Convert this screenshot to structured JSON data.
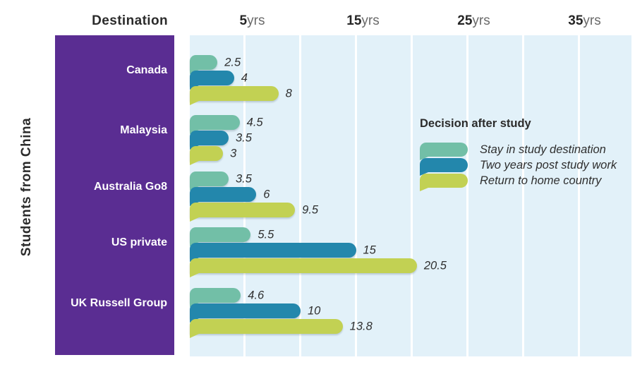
{
  "y_axis_label": "Students from China",
  "header": {
    "destination": "Destination"
  },
  "axis_ticks": [
    {
      "value": 5,
      "suffix": "yrs"
    },
    {
      "value": 15,
      "suffix": "yrs"
    },
    {
      "value": 25,
      "suffix": "yrs"
    },
    {
      "value": 35,
      "suffix": "yrs"
    }
  ],
  "legend": {
    "title": "Decision after study"
  },
  "colors": {
    "panel_purple": "#5a2d92",
    "plot_background": "#e2f1f9",
    "gridline_white": "#ffffff",
    "series_stay": "#72bfa7",
    "series_work": "#2387ac",
    "series_return": "#c2d153",
    "text_dark": "#2b2b2b",
    "tick_suffix_gray": "#6a6a6a"
  },
  "chart_data": {
    "type": "bar",
    "orientation": "horizontal",
    "row_header": "Destination",
    "ylabel": "Students from China",
    "legend_title": "Decision after study",
    "categories": [
      "Canada",
      "Malaysia",
      "Australia Go8",
      "US private",
      "UK Russell Group"
    ],
    "series": [
      {
        "name": "Stay in study destination",
        "color": "#72bfa7",
        "values": [
          2.5,
          4.5,
          3.5,
          5.5,
          4.6
        ]
      },
      {
        "name": "Two years post study work",
        "color": "#2387ac",
        "values": [
          4,
          3.5,
          6,
          15,
          10
        ]
      },
      {
        "name": "Return to home country",
        "color": "#c2d153",
        "values": [
          8,
          3,
          9.5,
          20.5,
          13.8
        ]
      }
    ],
    "x_ticks": [
      5,
      15,
      25,
      35
    ],
    "x_tick_suffix": "yrs",
    "xlim": [
      0,
      40
    ],
    "grid": true,
    "legend_position": "middle-right",
    "value_labels_shown": true
  }
}
